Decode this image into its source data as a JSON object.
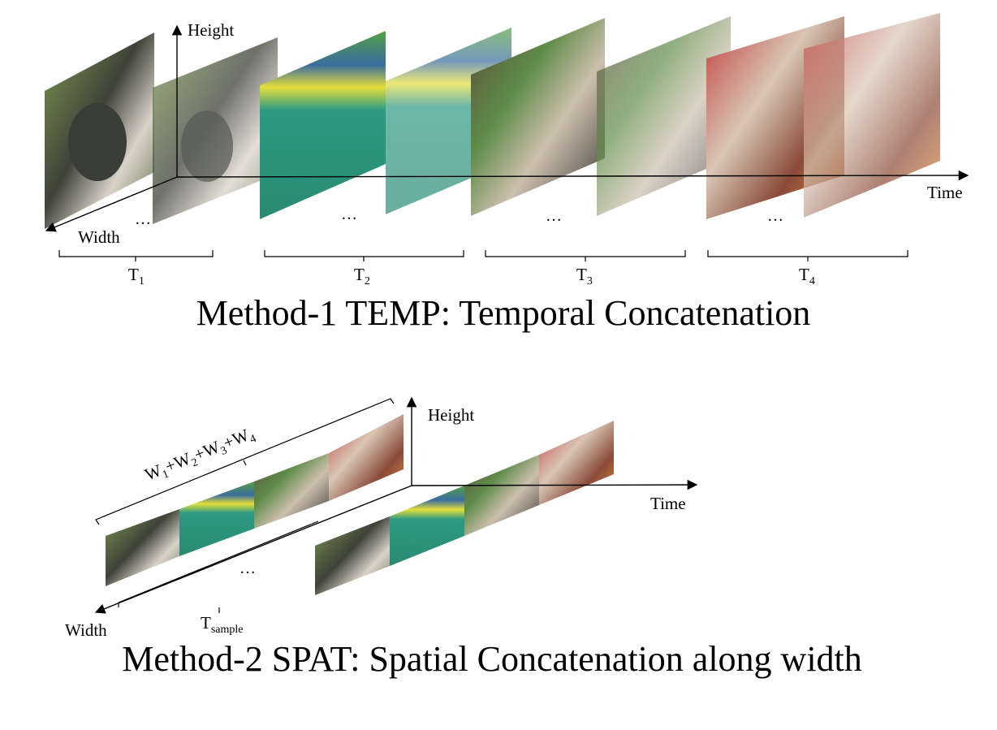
{
  "colors": {
    "dog_frame": [
      "#6e7a55",
      "#3f4238",
      "#b9b3a6"
    ],
    "agility_frame": [
      "#2f9c80",
      "#d8d23a",
      "#1f4f6a"
    ],
    "woman_dog_frame": [
      "#3c3a35",
      "#6d8a4d",
      "#c9b9a6"
    ],
    "cat_frame": [
      "#b24a3a",
      "#e09a5c",
      "#c9b7a8"
    ],
    "axis": "#000000"
  },
  "method1": {
    "axis_height": "Height",
    "axis_width": "Width",
    "axis_time": "Time",
    "ellipsis": "…",
    "segments": [
      {
        "main": "T",
        "sub": "1"
      },
      {
        "main": "T",
        "sub": "2"
      },
      {
        "main": "T",
        "sub": "3"
      },
      {
        "main": "T",
        "sub": "4"
      }
    ],
    "title": "Method-1 TEMP: Temporal Concatenation"
  },
  "method2": {
    "axis_height": "Height",
    "axis_width": "Width",
    "axis_time": "Time",
    "ellipsis": "…",
    "width_label": {
      "parts": [
        {
          "main": "W",
          "sub": "1"
        },
        {
          "main": "+W",
          "sub": "2"
        },
        {
          "main": "+W",
          "sub": "3"
        },
        {
          "main": "+W",
          "sub": "4"
        }
      ]
    },
    "sample_label": {
      "main": "T",
      "sub": "sample"
    },
    "title": "Method-2 SPAT: Spatial Concatenation along width"
  }
}
